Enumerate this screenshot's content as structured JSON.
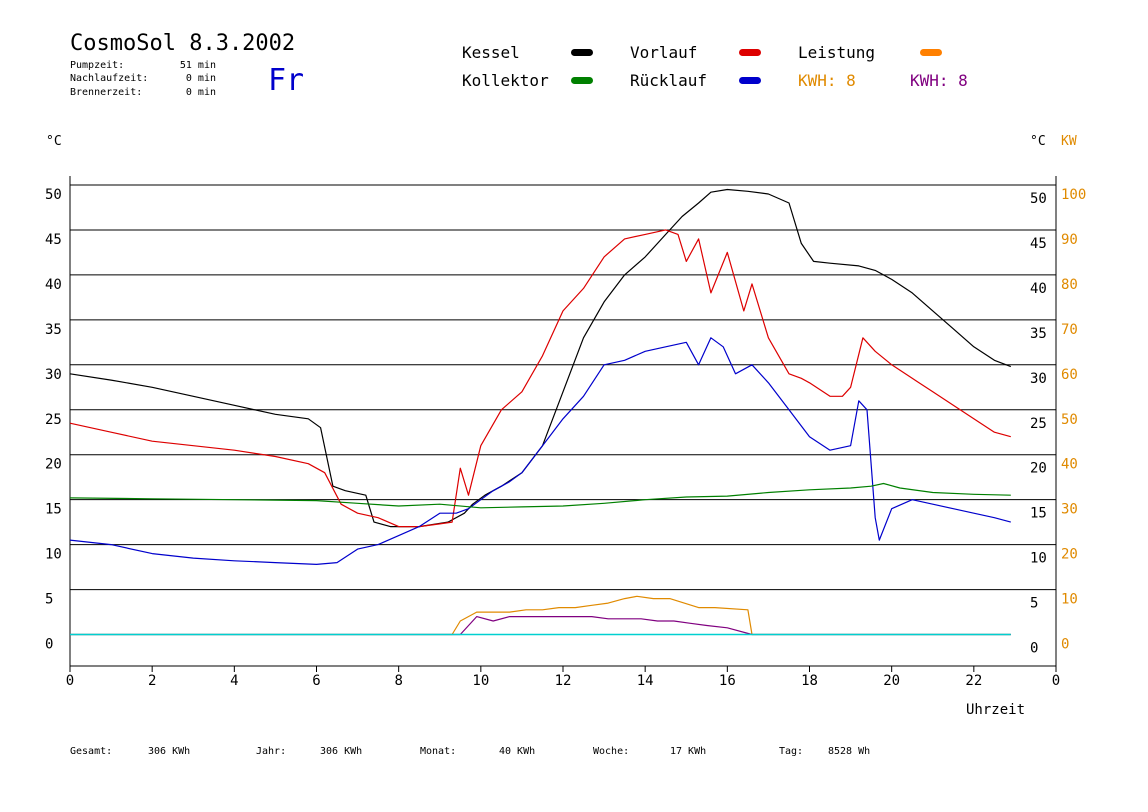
{
  "header": {
    "title": "CosmoSol 8.3.2002",
    "weekday": "Fr",
    "stats": [
      {
        "label": "Pumpzeit:",
        "value": "51 min"
      },
      {
        "label": "Nachlaufzeit:",
        "value": "0 min"
      },
      {
        "label": "Brennerzeit:",
        "value": "0 min"
      }
    ]
  },
  "legend": {
    "items": [
      {
        "label": "Kessel",
        "color": "#000000"
      },
      {
        "label": "Vorlauf",
        "color": "#dd0000"
      },
      {
        "label": "Leistung",
        "color": "#ff8000"
      },
      {
        "label": "Kollektor",
        "color": "#008000"
      },
      {
        "label": "Rücklauf",
        "color": "#0000cc"
      }
    ],
    "kwh": [
      {
        "label": "KWH: 8",
        "color": "#e08a00"
      },
      {
        "label": "KWH: 8",
        "color": "#800080"
      }
    ]
  },
  "axes": {
    "left_unit": "°C",
    "right_unit": "°C",
    "right_unit2": "KW",
    "kw_color": "#e08a00",
    "xlabel": "Uhrzeit",
    "x_ticks": [
      "0",
      "2",
      "4",
      "6",
      "8",
      "10",
      "12",
      "14",
      "16",
      "18",
      "20",
      "22",
      "0"
    ],
    "y_ticks": [
      "0",
      "5",
      "10",
      "15",
      "20",
      "25",
      "30",
      "35",
      "40",
      "45",
      "50"
    ],
    "kw_ticks": [
      "0",
      "10",
      "20",
      "30",
      "40",
      "50",
      "60",
      "70",
      "80",
      "90",
      "100"
    ]
  },
  "footer": [
    {
      "label": "Gesamt:",
      "value": "306 KWh"
    },
    {
      "label": "Jahr:",
      "value": "306 KWh"
    },
    {
      "label": "Monat:",
      "value": "40 KWh"
    },
    {
      "label": "Woche:",
      "value": "17 KWh"
    },
    {
      "label": "Tag:",
      "value": "8528 Wh"
    }
  ],
  "chart_data": {
    "type": "line",
    "xlabel": "Uhrzeit",
    "xlim": [
      0,
      24
    ],
    "ylim": [
      -3.5,
      51
    ],
    "ylim_kw": [
      0,
      100
    ],
    "grid": true,
    "legend_position": "top",
    "series": [
      {
        "name": "Kessel",
        "color": "#000000",
        "x": [
          0,
          1,
          2,
          3,
          4,
          5,
          5.8,
          6.1,
          6.4,
          6.7,
          7.2,
          7.4,
          7.8,
          8.5,
          9.2,
          9.6,
          9.8,
          10.1,
          10.5,
          11,
          11.5,
          12,
          12.5,
          13,
          13.5,
          14,
          14.5,
          14.9,
          15.3,
          15.6,
          16,
          16.5,
          17,
          17.5,
          17.8,
          18.1,
          18.5,
          19.2,
          19.6,
          20,
          20.5,
          21,
          21.5,
          22,
          22.5,
          22.9
        ],
        "y": [
          29,
          28.3,
          27.5,
          26.5,
          25.5,
          24.5,
          24,
          23,
          16.5,
          16,
          15.5,
          12.5,
          12,
          12,
          12.5,
          13.5,
          14.5,
          15.5,
          16.5,
          18,
          21,
          27,
          33,
          37,
          40,
          42,
          44.5,
          46.5,
          48,
          49.2,
          49.5,
          49.3,
          49,
          48,
          43.5,
          41.5,
          41.3,
          41,
          40.5,
          39.5,
          38,
          36,
          34,
          32,
          30.5,
          29.8
        ]
      },
      {
        "name": "Vorlauf",
        "color": "#dd0000",
        "x": [
          0,
          1,
          2,
          3,
          4,
          5,
          5.8,
          6.2,
          6.6,
          7,
          7.5,
          8,
          8.5,
          9,
          9.3,
          9.5,
          9.7,
          10,
          10.5,
          11,
          11.5,
          12,
          12.5,
          13,
          13.5,
          14,
          14.5,
          14.8,
          15,
          15.3,
          15.6,
          16,
          16.4,
          16.6,
          17,
          17.5,
          17.8,
          18,
          18.5,
          18.8,
          19,
          19.3,
          19.6,
          20,
          20.5,
          21,
          21.5,
          22,
          22.5,
          22.9
        ],
        "y": [
          23.5,
          22.5,
          21.5,
          21,
          20.5,
          19.8,
          19,
          18,
          14.5,
          13.5,
          13,
          12,
          12,
          12.3,
          12.5,
          18.5,
          15.5,
          21,
          25,
          27,
          31,
          36,
          38.5,
          42,
          44,
          44.5,
          45,
          44.5,
          41.5,
          44,
          38,
          42.5,
          36,
          39,
          33,
          29,
          28.5,
          28,
          26.5,
          26.5,
          27.5,
          33,
          31.5,
          30,
          28.5,
          27,
          25.5,
          24,
          22.5,
          22
        ]
      },
      {
        "name": "Rücklauf",
        "color": "#0000cc",
        "x": [
          0,
          1,
          2,
          3,
          4,
          5,
          6,
          6.5,
          7,
          7.5,
          8,
          8.5,
          9,
          9.4,
          9.7,
          10,
          10.3,
          10.7,
          11,
          11.5,
          12,
          12.5,
          13,
          13.5,
          14,
          14.5,
          15,
          15.3,
          15.6,
          15.9,
          16.2,
          16.6,
          17,
          17.5,
          18,
          18.5,
          19,
          19.2,
          19.4,
          19.6,
          19.7,
          20,
          20.5,
          21,
          21.5,
          22,
          22.5,
          22.9
        ],
        "y": [
          10.5,
          10,
          9,
          8.5,
          8.2,
          8,
          7.8,
          8,
          9.5,
          10,
          11,
          12,
          13.5,
          13.5,
          14,
          15,
          16,
          17,
          18,
          21,
          24,
          26.5,
          30,
          30.5,
          31.5,
          32,
          32.5,
          30,
          33,
          32,
          29,
          30,
          28,
          25,
          22,
          20.5,
          21,
          26,
          25,
          13,
          10.5,
          14,
          15,
          14.5,
          14,
          13.5,
          13,
          12.5
        ]
      },
      {
        "name": "Kollektor",
        "color": "#008000",
        "x": [
          0,
          2,
          4,
          6,
          7,
          8,
          9,
          10,
          11,
          12,
          13,
          14,
          15,
          16,
          17,
          18,
          19,
          19.5,
          19.8,
          20.2,
          21,
          22,
          22.9
        ],
        "y": [
          15.2,
          15.1,
          15,
          14.9,
          14.6,
          14.3,
          14.5,
          14.1,
          14.2,
          14.3,
          14.6,
          15,
          15.3,
          15.4,
          15.8,
          16.1,
          16.3,
          16.5,
          16.8,
          16.3,
          15.8,
          15.6,
          15.5
        ]
      },
      {
        "name": "Leistung",
        "color": "#e08a00",
        "x": [
          0,
          9.3,
          9.5,
          9.9,
          10.3,
          10.7,
          11.1,
          11.5,
          11.9,
          12.3,
          12.7,
          13.1,
          13.5,
          13.8,
          14.2,
          14.6,
          15.3,
          15.7,
          16.5,
          16.6,
          22.9
        ],
        "y": [
          0,
          0,
          3,
          5,
          5,
          5,
          5.5,
          5.5,
          6,
          6,
          6.5,
          7,
          8,
          8.5,
          8,
          8,
          6,
          6,
          5.5,
          0,
          0
        ]
      },
      {
        "name": "KWH",
        "color": "#800080",
        "x": [
          0,
          9.5,
          9.9,
          10.3,
          10.7,
          11.1,
          11.5,
          11.9,
          12.3,
          12.7,
          13.1,
          13.5,
          13.9,
          14.3,
          14.7,
          15.1,
          15.5,
          16,
          16.6,
          22.9
        ],
        "y": [
          0,
          0,
          4,
          3,
          4,
          4,
          4,
          4,
          4,
          4,
          3.5,
          3.5,
          3.5,
          3,
          3,
          2.5,
          2,
          1.5,
          0,
          0
        ]
      },
      {
        "name": "Null",
        "color": "#00d0d0",
        "x": [
          0,
          22.9
        ],
        "y": [
          0,
          0
        ]
      }
    ]
  }
}
